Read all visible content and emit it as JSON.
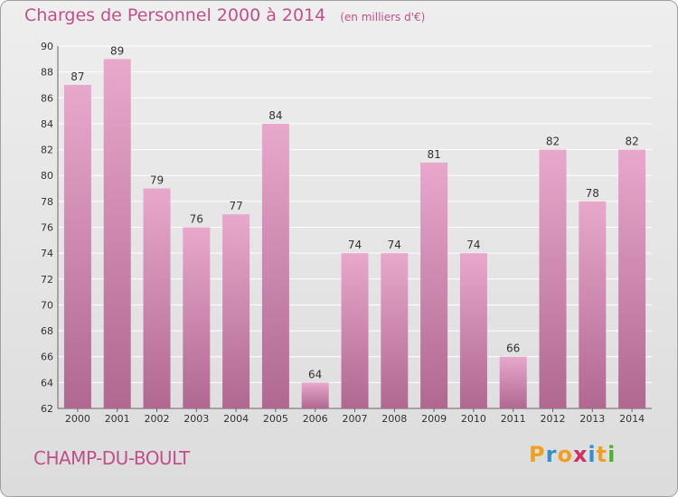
{
  "title": "Charges de Personnel 2000 à 2014",
  "unit_note": "(en milliers d'€)",
  "commune": "CHAMP-DU-BOULT",
  "logo": {
    "letters": [
      "P",
      "r",
      "o",
      "x",
      "i",
      "t",
      "i"
    ],
    "colors": [
      "#f0a020",
      "#3090d0",
      "#f0a020",
      "#d03060",
      "#3090d0",
      "#f0a020",
      "#50b030"
    ]
  },
  "colors": {
    "bar_light": "#e8a8cc",
    "bar_dark": "#b06890",
    "title": "#c0508a",
    "grid": "#ffffff"
  },
  "chart_data": {
    "type": "bar",
    "title": "Charges de Personnel 2000 à 2014",
    "subtitle": "(en milliers d'€)",
    "categories": [
      "2000",
      "2001",
      "2002",
      "2003",
      "2004",
      "2005",
      "2006",
      "2007",
      "2008",
      "2009",
      "2010",
      "2011",
      "2012",
      "2013",
      "2014"
    ],
    "values": [
      87,
      89,
      79,
      76,
      77,
      84,
      64,
      74,
      74,
      81,
      74,
      66,
      82,
      78,
      82
    ],
    "ylim": [
      62,
      90
    ],
    "yticks": [
      62,
      64,
      66,
      68,
      70,
      72,
      74,
      76,
      78,
      80,
      82,
      84,
      86,
      88,
      90
    ],
    "grid": true,
    "data_labels": true
  }
}
